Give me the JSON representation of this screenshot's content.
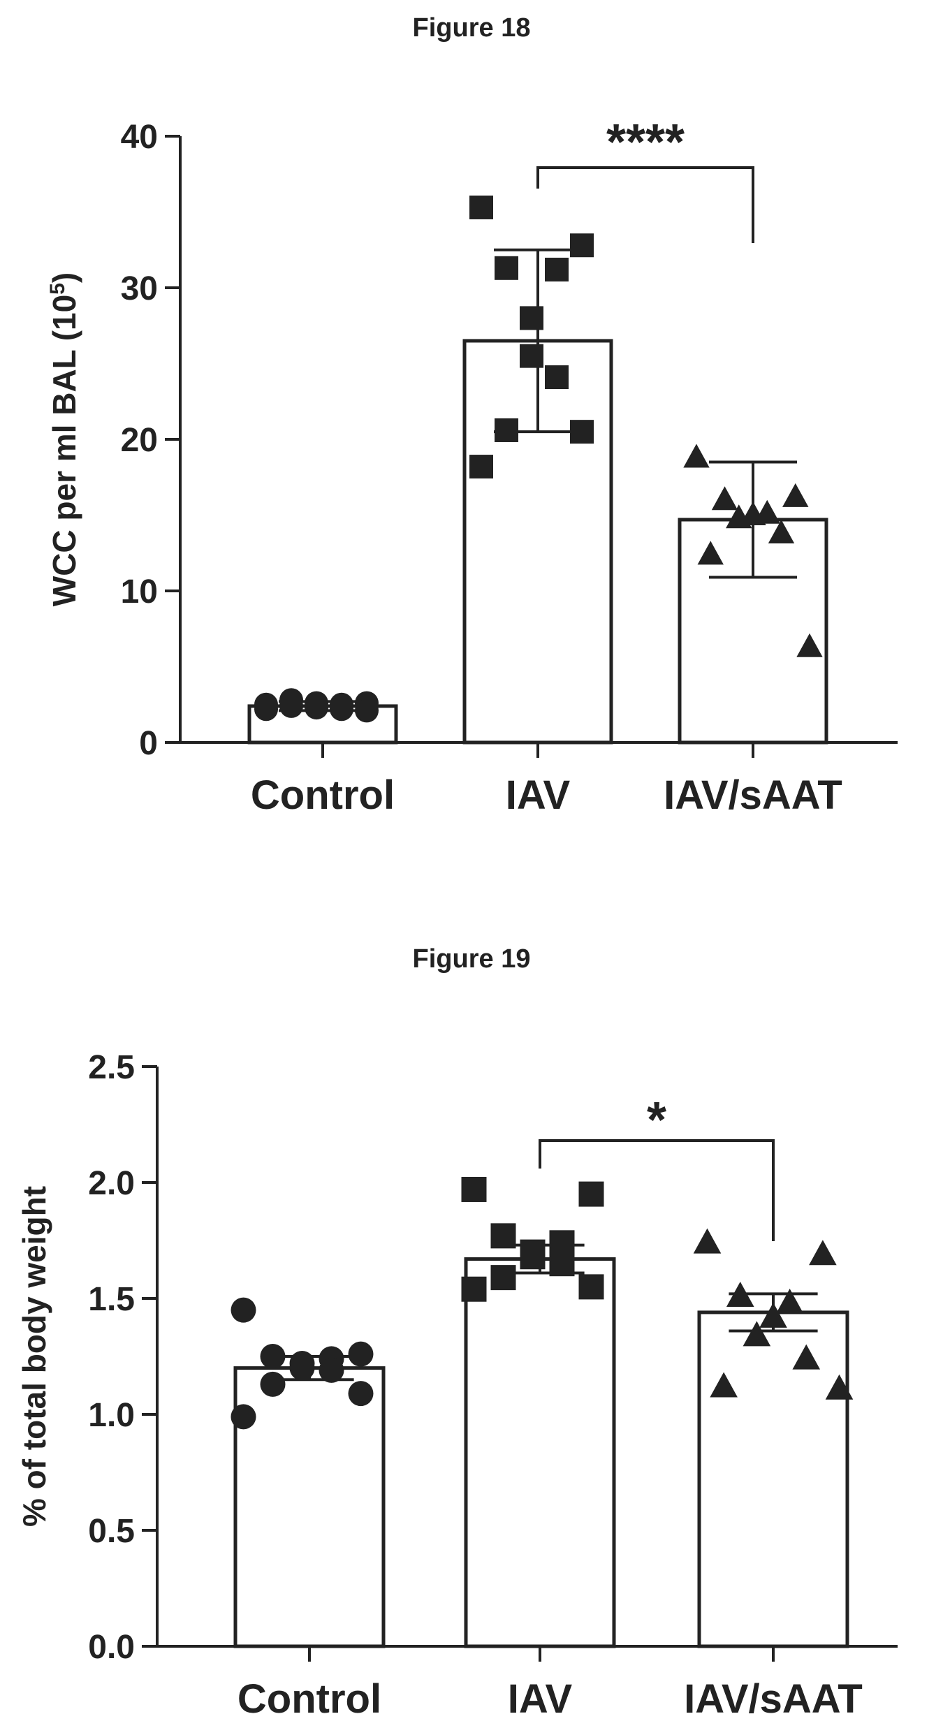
{
  "chart_data": [
    {
      "type": "bar",
      "title": "Figure 18",
      "categories": [
        "Control",
        "IAV",
        "IAV/sAAT"
      ],
      "values": [
        2.4,
        26.5,
        14.7
      ],
      "error": [
        0.3,
        6.0,
        3.8
      ],
      "ylabel_main": "WCC per ml BAL (10",
      "ylabel_sup": "5",
      "ylabel_end": ")",
      "ylim": [
        0,
        40
      ],
      "yticks": [
        "0",
        "10",
        "20",
        "30",
        "40"
      ],
      "grid": false,
      "marker_colors": "#222222",
      "points": [
        {
          "category": "Control",
          "marker": "circle",
          "values": [
            2.2,
            2.6,
            2.8,
            2.5,
            2.3,
            2.6,
            2.2,
            2.4,
            2.1,
            2.5
          ]
        },
        {
          "category": "IAV",
          "marker": "square",
          "values": [
            35.3,
            32.8,
            31.3,
            31.2,
            28.0,
            25.5,
            24.1,
            20.6,
            20.5,
            18.2
          ]
        },
        {
          "category": "IAV/sAAT",
          "marker": "triangle",
          "values": [
            18.8,
            16.2,
            16.0,
            15.1,
            15.0,
            14.8,
            13.8,
            12.4,
            6.3
          ]
        }
      ],
      "significance": {
        "from": "IAV",
        "to": "IAV/sAAT",
        "label": "****"
      }
    },
    {
      "type": "bar",
      "title": "Figure 19",
      "categories": [
        "Control",
        "IAV",
        "IAV/sAAT"
      ],
      "values": [
        1.2,
        1.67,
        1.44
      ],
      "error": [
        0.05,
        0.06,
        0.08
      ],
      "ylabel": "% of total body weight",
      "ylim": [
        0,
        2.5
      ],
      "yticks": [
        "0.0",
        "0.5",
        "1.0",
        "1.5",
        "2.0",
        "2.5"
      ],
      "grid": false,
      "marker_colors": "#222222",
      "points": [
        {
          "category": "Control",
          "marker": "circle",
          "values": [
            1.45,
            1.26,
            1.25,
            1.24,
            1.22,
            1.2,
            1.19,
            1.13,
            1.09,
            0.99
          ]
        },
        {
          "category": "IAV",
          "marker": "square",
          "values": [
            1.97,
            1.95,
            1.77,
            1.74,
            1.7,
            1.68,
            1.65,
            1.59,
            1.55,
            1.54
          ]
        },
        {
          "category": "IAV/sAAT",
          "marker": "triangle",
          "values": [
            1.74,
            1.69,
            1.51,
            1.48,
            1.42,
            1.34,
            1.24,
            1.12,
            1.11
          ]
        }
      ],
      "significance": {
        "from": "IAV",
        "to": "IAV/sAAT",
        "label": "*"
      }
    }
  ]
}
